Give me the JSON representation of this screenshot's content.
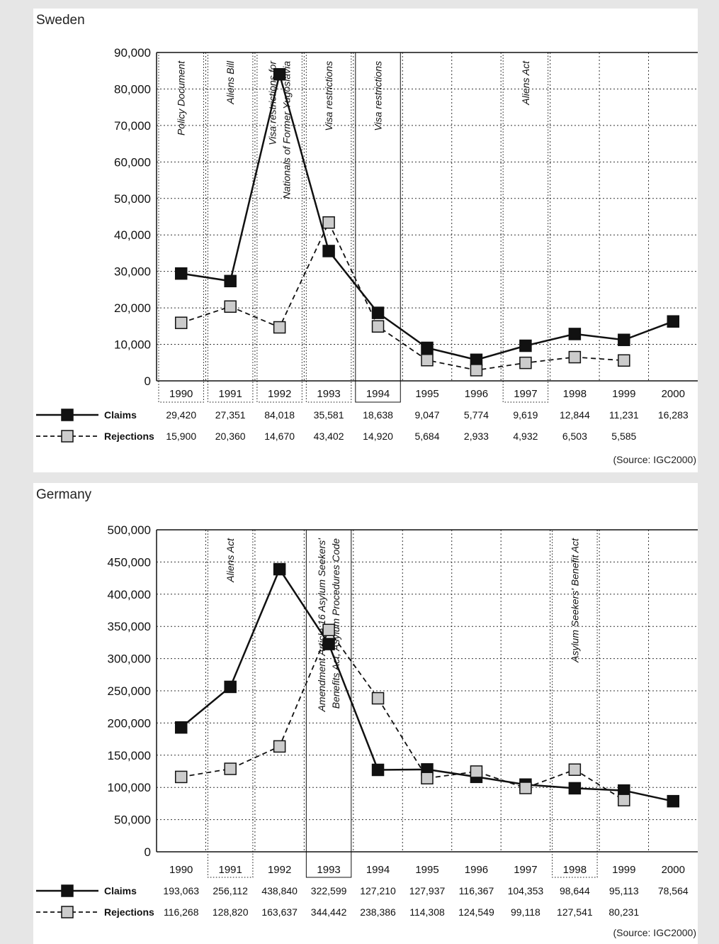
{
  "chart_data": [
    {
      "type": "line",
      "title": "Sweden",
      "categories": [
        "1990",
        "1991",
        "1992",
        "1993",
        "1994",
        "1995",
        "1996",
        "1997",
        "1998",
        "1999",
        "2000"
      ],
      "ylim": [
        0,
        90000
      ],
      "yticks": [
        "0",
        "10,000",
        "20,000",
        "30,000",
        "40,000",
        "50,000",
        "60,000",
        "70,000",
        "80,000",
        "90,000"
      ],
      "ytick_values": [
        0,
        10000,
        20000,
        30000,
        40000,
        50000,
        60000,
        70000,
        80000,
        90000
      ],
      "grid": true,
      "series": [
        {
          "name": "Claims",
          "style": "solid",
          "marker_color": "#111111",
          "values": [
            29420,
            27351,
            84018,
            35581,
            18638,
            9047,
            5774,
            9619,
            12844,
            11231,
            16283
          ],
          "labels": [
            "29,420",
            "27,351",
            "84,018",
            "35,581",
            "18,638",
            "9,047",
            "5,774",
            "9,619",
            "12,844",
            "11,231",
            "16,283"
          ]
        },
        {
          "name": "Rejections",
          "style": "dashed",
          "marker_color": "#cccccc",
          "values": [
            15900,
            20360,
            14670,
            43402,
            14920,
            5684,
            2933,
            4932,
            6503,
            5585,
            null
          ],
          "labels": [
            "15,900",
            "20,360",
            "14,670",
            "43,402",
            "14,920",
            "5,684",
            "2,933",
            "4,932",
            "6,503",
            "5,585",
            ""
          ]
        }
      ],
      "annotations": [
        {
          "start": 0,
          "end": 0,
          "lines": [
            "Policy Document"
          ],
          "border": "dotted"
        },
        {
          "start": 1,
          "end": 1,
          "lines": [
            "Aliens Bill"
          ],
          "border": "dotted"
        },
        {
          "start": 2,
          "end": 2,
          "lines": [
            "Visa restrictions for",
            "Nationals of Former Yugoslavia"
          ],
          "border": "dotted"
        },
        {
          "start": 3,
          "end": 3,
          "lines": [
            "Visa restrictions"
          ],
          "border": "dotted"
        },
        {
          "start": 4,
          "end": 4,
          "lines": [
            "Visa restrictions"
          ],
          "border": "solid"
        },
        {
          "start": 7,
          "end": 7,
          "lines": [
            "Aliens Act"
          ],
          "border": "dotted"
        }
      ],
      "source": "(Source: IGC2000)"
    },
    {
      "type": "line",
      "title": "Germany",
      "categories": [
        "1990",
        "1991",
        "1992",
        "1993",
        "1994",
        "1995",
        "1996",
        "1997",
        "1998",
        "1999",
        "2000"
      ],
      "ylim": [
        0,
        500000
      ],
      "yticks": [
        "0",
        "50,000",
        "100,000",
        "150,000",
        "200,000",
        "250,000",
        "300,000",
        "350,000",
        "400,000",
        "450,000",
        "500,000"
      ],
      "ytick_values": [
        0,
        50000,
        100000,
        150000,
        200000,
        250000,
        300000,
        350000,
        400000,
        450000,
        500000
      ],
      "grid": true,
      "series": [
        {
          "name": "Claims",
          "style": "solid",
          "marker_color": "#111111",
          "values": [
            193063,
            256112,
            438840,
            322599,
            127210,
            127937,
            116367,
            104353,
            98644,
            95113,
            78564
          ],
          "labels": [
            "193,063",
            "256,112",
            "438,840",
            "322,599",
            "127,210",
            "127,937",
            "116,367",
            "104,353",
            "98,644",
            "95,113",
            "78,564"
          ]
        },
        {
          "name": "Rejections",
          "style": "dashed",
          "marker_color": "#cccccc",
          "values": [
            116268,
            128820,
            163637,
            344442,
            238386,
            114308,
            124549,
            99118,
            127541,
            80231,
            null
          ],
          "labels": [
            "116,268",
            "128,820",
            "163,637",
            "344,442",
            "238,386",
            "114,308",
            "124,549",
            "99,118",
            "127,541",
            "80,231",
            ""
          ]
        }
      ],
      "annotations": [
        {
          "start": 1,
          "end": 1,
          "lines": [
            "Aliens Act"
          ],
          "border": "dotted"
        },
        {
          "start": 3,
          "end": 3,
          "lines": [
            "Amendment Article 16 Asylum Seekers'",
            "Benefits Act, Asylum Procedures Code"
          ],
          "border": "solid"
        },
        {
          "start": 8,
          "end": 8,
          "lines": [
            "Asylum Seekers' Benefit Act"
          ],
          "border": "dotted"
        }
      ],
      "source": "(Source: IGC2000)"
    }
  ]
}
